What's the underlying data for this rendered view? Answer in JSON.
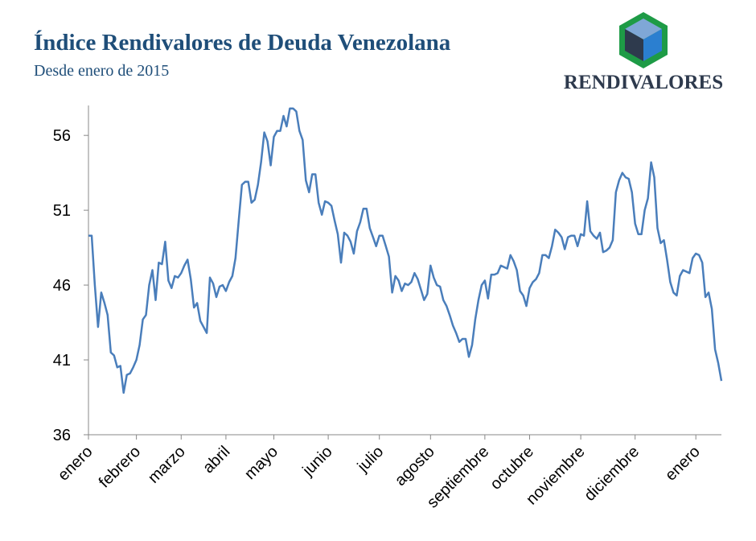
{
  "chart_data": {
    "type": "line",
    "title": "Índice Rendivalores de Deuda Venezolana",
    "subtitle": "Desde enero de 2015",
    "categories": [
      "enero",
      null,
      null,
      null,
      null,
      null,
      null,
      null,
      null,
      null,
      null,
      null,
      null,
      null,
      null,
      "febrero",
      null,
      null,
      null,
      null,
      null,
      null,
      null,
      null,
      null,
      null,
      null,
      null,
      null,
      "marzo",
      null,
      null,
      null,
      null,
      null,
      null,
      null,
      null,
      null,
      null,
      null,
      null,
      null,
      "abril",
      null,
      null,
      null,
      null,
      null,
      null,
      null,
      null,
      null,
      null,
      null,
      null,
      null,
      null,
      "mayo",
      null,
      null,
      null,
      null,
      null,
      null,
      null,
      null,
      null,
      null,
      null,
      null,
      null,
      null,
      null,
      null,
      "junio",
      null,
      null,
      null,
      null,
      null,
      null,
      null,
      null,
      null,
      null,
      null,
      null,
      null,
      null,
      null,
      "julio",
      null,
      null,
      null,
      null,
      null,
      null,
      null,
      null,
      null,
      null,
      null,
      null,
      null,
      null,
      null,
      "agosto",
      null,
      null,
      null,
      null,
      null,
      null,
      null,
      null,
      null,
      null,
      null,
      null,
      null,
      null,
      null,
      null,
      "septiembre",
      null,
      null,
      null,
      null,
      null,
      null,
      null,
      null,
      null,
      null,
      null,
      null,
      null,
      "octubre",
      null,
      null,
      null,
      null,
      null,
      null,
      null,
      null,
      null,
      null,
      null,
      null,
      null,
      null,
      null,
      "noviembre",
      null,
      null,
      null,
      null,
      null,
      null,
      null,
      null,
      null,
      null,
      null,
      null,
      null,
      null,
      null,
      null,
      "diciembre",
      null,
      null,
      null,
      null,
      null,
      null,
      null,
      null,
      null,
      null,
      null,
      null,
      null,
      null,
      null,
      null,
      null,
      null,
      "enero",
      null,
      null,
      null,
      null,
      null,
      null,
      null,
      null
    ],
    "values": [
      49.3,
      49.3,
      46,
      43.2,
      45.5,
      44.8,
      44,
      41.5,
      41.3,
      40.5,
      40.6,
      38.8,
      40,
      40.1,
      40.5,
      41,
      42,
      43.7,
      44,
      46,
      47,
      45,
      47.5,
      47.4,
      48.9,
      46.3,
      45.8,
      46.6,
      46.5,
      46.8,
      47.3,
      47.7,
      46.4,
      44.5,
      44.8,
      43.6,
      43.2,
      42.8,
      46.5,
      46.1,
      45.2,
      45.9,
      46,
      45.6,
      46.2,
      46.6,
      47.8,
      50.3,
      52.7,
      52.9,
      52.9,
      51.5,
      51.7,
      52.7,
      54.2,
      56.2,
      55.6,
      54,
      55.9,
      56.3,
      56.3,
      57.3,
      56.6,
      57.8,
      57.8,
      57.6,
      56.3,
      55.7,
      53,
      52.2,
      53.4,
      53.4,
      51.5,
      50.7,
      51.6,
      51.5,
      51.3,
      50.3,
      49.4,
      47.5,
      49.5,
      49.3,
      48.9,
      48.1,
      49.6,
      50.2,
      51.1,
      51.1,
      49.8,
      49.2,
      48.6,
      49.3,
      49.3,
      48.6,
      47.9,
      45.5,
      46.6,
      46.3,
      45.6,
      46.1,
      46,
      46.2,
      46.8,
      46.4,
      45.7,
      45,
      45.4,
      47.3,
      46.5,
      46,
      45.9,
      45,
      44.6,
      44,
      43.3,
      42.8,
      42.2,
      42.4,
      42.4,
      41.2,
      42,
      43.7,
      45,
      46,
      46.3,
      45.1,
      46.7,
      46.7,
      46.8,
      47.3,
      47.2,
      47.1,
      48,
      47.6,
      47,
      45.6,
      45.3,
      44.6,
      45.8,
      46.2,
      46.4,
      46.8,
      48,
      48,
      47.8,
      48.6,
      49.7,
      49.5,
      49.2,
      48.4,
      49.2,
      49.3,
      49.3,
      48.6,
      49.4,
      49.3,
      51.6,
      49.6,
      49.3,
      49.1,
      49.5,
      48.2,
      48.3,
      48.5,
      49,
      52.2,
      53,
      53.5,
      53.2,
      53.1,
      52.2,
      50.1,
      49.4,
      49.4,
      51,
      51.8,
      54.2,
      53.2,
      49.8,
      48.8,
      49,
      47.7,
      46.2,
      45.5,
      45.3,
      46.6,
      47,
      46.9,
      46.8,
      47.8,
      48.1,
      48,
      47.5,
      45.2,
      45.5,
      44.4,
      41.7,
      40.8,
      39.6
    ],
    "color": "#4a7ebb",
    "ylim": [
      36,
      58
    ],
    "yticks": [
      36,
      41,
      46,
      51,
      56
    ],
    "logo": "RENDIVALORES"
  }
}
